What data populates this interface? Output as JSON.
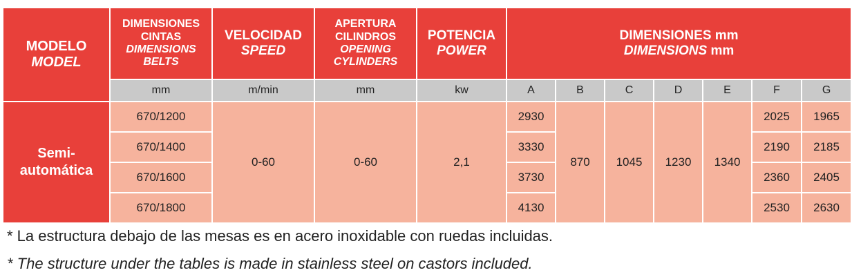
{
  "table": {
    "headers": {
      "model": {
        "es": "MODELO",
        "en": "MODEL"
      },
      "belts": {
        "es_line1": "DIMENSIONES",
        "es_line2": "CINTAS",
        "en_line1": "DIMENSIONS",
        "en_line2": "BELTS"
      },
      "speed": {
        "es": "VELOCIDAD",
        "en": "SPEED"
      },
      "opening": {
        "es_line1": "APERTURA",
        "es_line2": "CILINDROS",
        "en_line1": "OPENING",
        "en_line2": "CYLINDERS"
      },
      "power": {
        "es": "POTENCIA",
        "en": "POWER"
      },
      "dimensions": {
        "es": "DIMENSIONES mm",
        "en_word": "DIMENSIONS",
        "en_unit": " mm"
      }
    },
    "units": {
      "belts": "mm",
      "speed": "m/min",
      "opening": "mm",
      "power": "kw",
      "dim_cols": [
        "A",
        "B",
        "C",
        "D",
        "E",
        "F",
        "G"
      ]
    },
    "model_name": {
      "line1": "Semi-",
      "line2": "automática"
    },
    "belt_sizes": [
      "670/1200",
      "670/1400",
      "670/1600",
      "670/1800"
    ],
    "speed_value": "0-60",
    "opening_value": "0-60",
    "power_value": "2,1",
    "dim_a": [
      "2930",
      "3330",
      "3730",
      "4130"
    ],
    "dim_b": "870",
    "dim_c": "1045",
    "dim_d": "1230",
    "dim_e": "1340",
    "dim_f": [
      "2025",
      "2190",
      "2360",
      "2530"
    ],
    "dim_g": [
      "1965",
      "2185",
      "2405",
      "2630"
    ]
  },
  "notes": {
    "es": "* La estructura debajo de las mesas es en acero inoxidable con ruedas incluidas.",
    "en": "* The structure under the tables is made in stainless steel on castors included."
  },
  "colors": {
    "header_red": "#e8403a",
    "unit_gray": "#c9c9c9",
    "value_salmon": "#f6b39d"
  }
}
